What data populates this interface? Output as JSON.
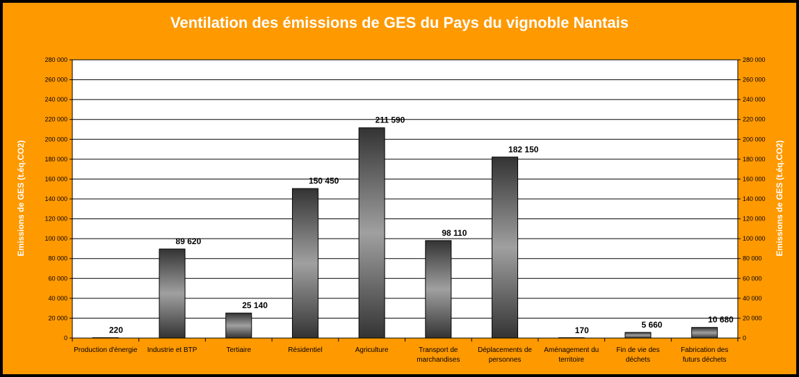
{
  "chart_data": {
    "type": "bar",
    "title": "Ventilation des émissions de GES du Pays du vignoble Nantais",
    "ylabel": "Emissions de GES (t.éq.CO2)",
    "ylabel_right": "Emissions de GES (t.éq.CO2)",
    "xlabel": "",
    "ylim": [
      0,
      280000
    ],
    "ytick_step": 20000,
    "ytick_labels": [
      "0",
      "20 000",
      "40 000",
      "60 000",
      "80 000",
      "100 000",
      "120 000",
      "140 000",
      "160 000",
      "180 000",
      "200 000",
      "220 000",
      "240 000",
      "260 000",
      "280 000"
    ],
    "grid": true,
    "legend": "none",
    "categories": [
      [
        "Production d'énergie"
      ],
      [
        "Industrie et BTP"
      ],
      [
        "Tertiaire"
      ],
      [
        "Résidentiel"
      ],
      [
        "Agriculture"
      ],
      [
        "Transport de",
        "marchandises"
      ],
      [
        "Déplacements de",
        "personnes"
      ],
      [
        "Aménagement du",
        "territoire"
      ],
      [
        "Fin de vie des",
        "déchets"
      ],
      [
        "Fabrication des",
        "futurs déchets"
      ]
    ],
    "values": [
      220,
      89620,
      25140,
      150450,
      211590,
      98110,
      182150,
      170,
      5660,
      10680
    ],
    "data_labels": [
      "220",
      "89 620",
      "25 140",
      "150 450",
      "211 590",
      "98 110",
      "182 150",
      "170",
      "5 660",
      "10 680"
    ],
    "colors": {
      "background": "#FF9900",
      "plot_background": "#FFFFFF",
      "bar_dark": "#333333",
      "bar_light": "#A0A0A0",
      "text": "#FFFFFF"
    }
  }
}
